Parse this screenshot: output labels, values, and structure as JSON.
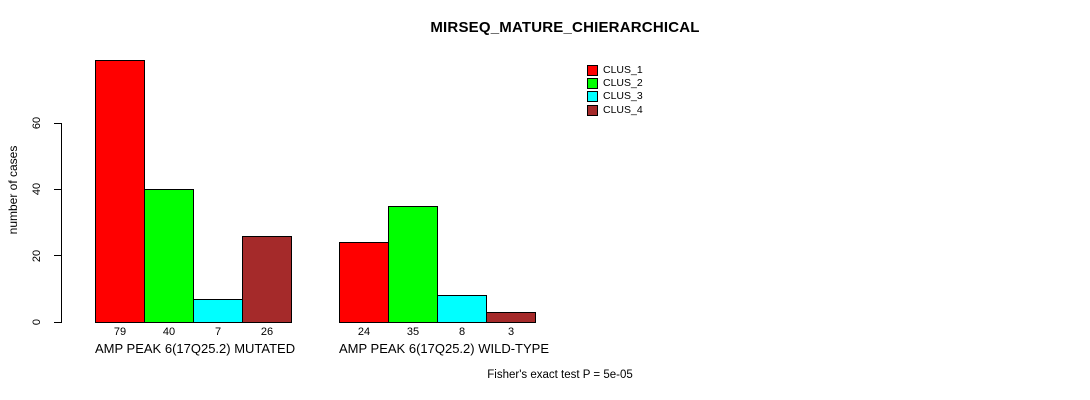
{
  "chart_data": {
    "type": "bar",
    "title": "MIRSEQ_MATURE_CHIERARCHICAL",
    "ylabel": "number of cases",
    "ylim": [
      0,
      60
    ],
    "yticks": [
      0,
      20,
      40,
      60
    ],
    "grid": false,
    "legend_position": "top-right-outside-plot",
    "categories": [
      "AMP PEAK 6(17Q25.2) MUTATED",
      "AMP PEAK 6(17Q25.2) WILD-TYPE"
    ],
    "series": [
      {
        "name": "CLUS_1",
        "color": "#FF0000",
        "values": [
          79,
          24
        ]
      },
      {
        "name": "CLUS_2",
        "color": "#00FF00",
        "values": [
          40,
          35
        ]
      },
      {
        "name": "CLUS_3",
        "color": "#00FFFF",
        "values": [
          7,
          8
        ]
      },
      {
        "name": "CLUS_4",
        "color": "#A52A2A",
        "values": [
          26,
          3
        ]
      }
    ],
    "footnote": "Fisher's exact test P = 5e-05"
  },
  "colors": {
    "background": "#FFFFFF",
    "axis": "#000000",
    "text": "#000000",
    "bar_border": "#000000"
  }
}
